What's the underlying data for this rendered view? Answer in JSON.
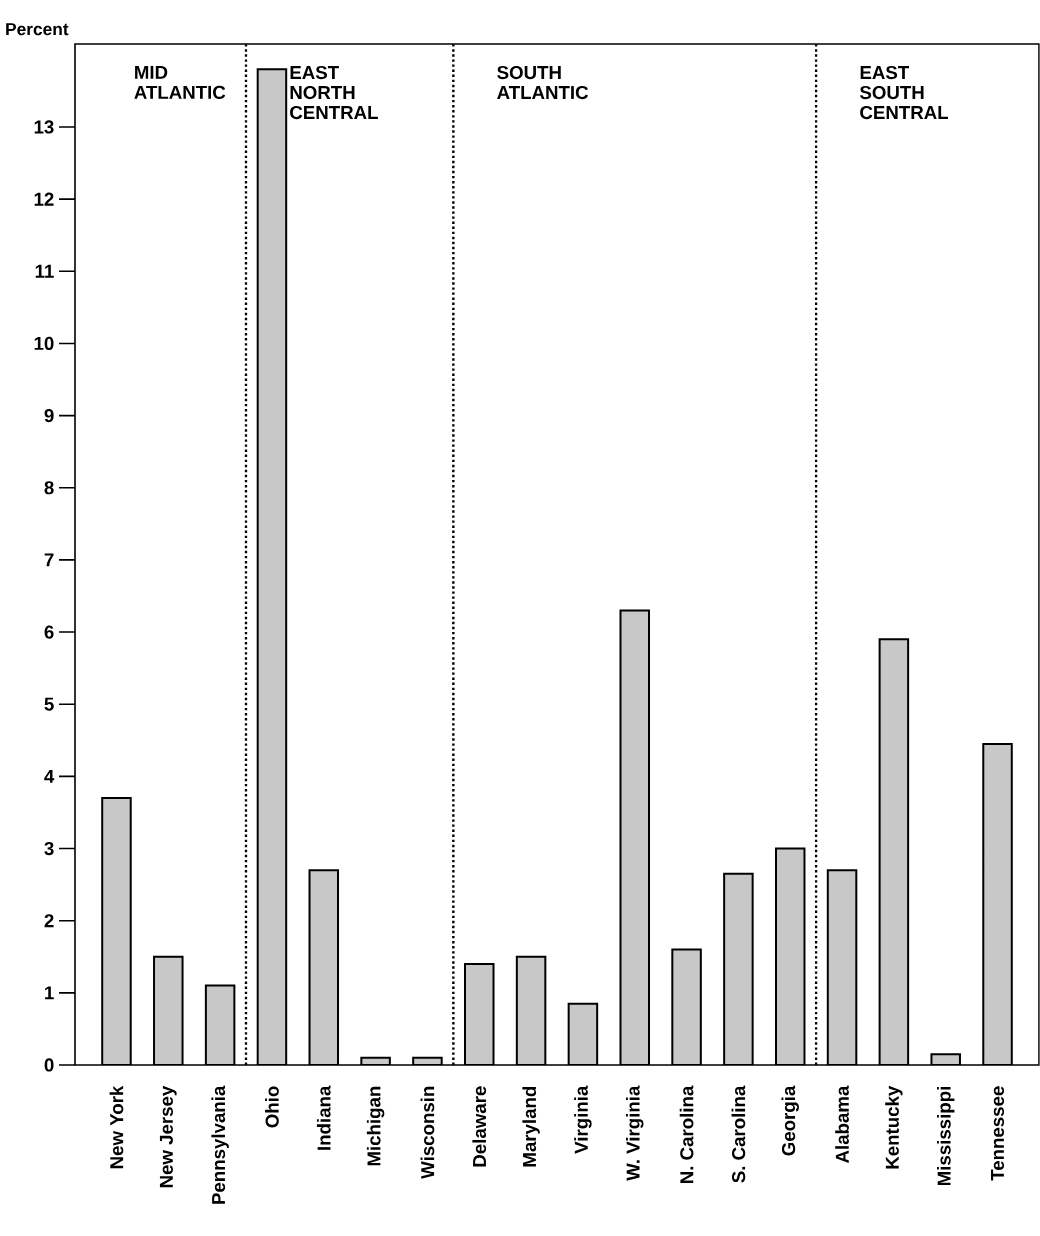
{
  "chart_data": {
    "type": "bar",
    "ylabel": "Percent",
    "categories": [
      "New York",
      "New Jersey",
      "Pennsylvania",
      "Ohio",
      "Indiana",
      "Michigan",
      "Wisconsin",
      "Delaware",
      "Maryland",
      "Virginia",
      "W. Virginia",
      "N. Carolina",
      "S. Carolina",
      "Georgia",
      "Alabama",
      "Kentucky",
      "Mississippi",
      "Tennessee"
    ],
    "values": [
      3.7,
      1.5,
      1.1,
      13.8,
      2.7,
      0.1,
      0.1,
      1.4,
      1.5,
      0.85,
      6.3,
      1.6,
      2.65,
      3.0,
      2.7,
      5.9,
      0.15,
      4.45
    ],
    "color": "#c8c8c8",
    "ylim": [
      0,
      14.15
    ],
    "yticks": [
      0,
      1,
      2,
      3,
      4,
      5,
      6,
      7,
      8,
      9,
      10,
      11,
      12,
      13
    ],
    "grid": false,
    "annotations": [
      "MID ATLANTIC",
      "EAST NORTH CENTRAL",
      "SOUTH ATLANTIC",
      "EAST SOUTH CENTRAL"
    ]
  }
}
